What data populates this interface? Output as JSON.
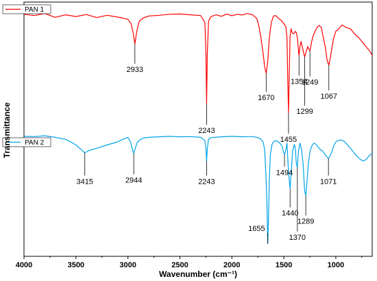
{
  "chart_data": {
    "type": "line",
    "xlabel": "Wavenumber (cm⁻¹)",
    "ylabel": "Transmittance",
    "xlim": [
      4000,
      650
    ],
    "xticks": [
      "4000",
      "3500",
      "3000",
      "2500",
      "2000",
      "1500",
      "1000"
    ],
    "xtick_values": [
      4000,
      3500,
      3000,
      2500,
      2000,
      1500,
      1000
    ],
    "ylim": [
      0,
      100
    ],
    "y_ticks_shown": false,
    "grid": false,
    "series": [
      {
        "name": "PAN 1",
        "color": "#ff0000",
        "x": [
          4000,
          3900,
          3800,
          3700,
          3600,
          3500,
          3400,
          3300,
          3200,
          3100,
          3050,
          3000,
          2970,
          2950,
          2933,
          2915,
          2890,
          2850,
          2800,
          2700,
          2600,
          2500,
          2400,
          2300,
          2260,
          2250,
          2243,
          2236,
          2225,
          2200,
          2150,
          2100,
          2050,
          2000,
          1950,
          1900,
          1850,
          1800,
          1760,
          1740,
          1720,
          1700,
          1685,
          1670,
          1655,
          1640,
          1620,
          1600,
          1580,
          1560,
          1540,
          1520,
          1500,
          1480,
          1470,
          1462,
          1455,
          1448,
          1440,
          1430,
          1420,
          1410,
          1400,
          1390,
          1380,
          1370,
          1360,
          1354,
          1345,
          1335,
          1320,
          1310,
          1299,
          1285,
          1270,
          1260,
          1249,
          1235,
          1220,
          1200,
          1180,
          1160,
          1140,
          1120,
          1100,
          1085,
          1075,
          1067,
          1055,
          1040,
          1020,
          1000,
          970,
          940,
          900,
          860,
          820,
          780,
          740,
          700,
          670,
          650
        ],
        "y": [
          95.2,
          94.7,
          95.5,
          94.0,
          95.0,
          94.3,
          95.1,
          93.9,
          94.8,
          94.1,
          93.7,
          93.2,
          91.5,
          88.0,
          83.5,
          88.5,
          92.5,
          93.8,
          94.5,
          94.8,
          95.2,
          95.3,
          95.0,
          94.7,
          92.0,
          80.0,
          60.0,
          80.0,
          92.5,
          94.3,
          95.0,
          94.4,
          95.3,
          94.6,
          95.2,
          94.9,
          95.5,
          95.0,
          93.5,
          90.5,
          86.0,
          80.0,
          74.5,
          72.0,
          76.5,
          86.0,
          92.0,
          94.5,
          94.7,
          94.0,
          93.3,
          92.5,
          91.5,
          90.3,
          86.0,
          68.0,
          56.5,
          72.0,
          86.5,
          89.5,
          88.0,
          87.5,
          87.8,
          88.5,
          88.0,
          86.0,
          81.5,
          79.0,
          82.5,
          84.5,
          82.0,
          80.0,
          78.5,
          80.5,
          82.5,
          81.5,
          80.8,
          84.0,
          86.5,
          88.5,
          90.0,
          90.8,
          90.0,
          86.0,
          82.0,
          77.5,
          76.0,
          75.2,
          77.5,
          81.5,
          86.0,
          88.5,
          89.5,
          91.0,
          90.0,
          89.5,
          87.5,
          86.0,
          84.0,
          82.0,
          80.5,
          79.0
        ]
      },
      {
        "name": "PAN 2",
        "color": "#00a2e8",
        "x": [
          4000,
          3900,
          3800,
          3700,
          3600,
          3550,
          3500,
          3450,
          3415,
          3380,
          3300,
          3200,
          3100,
          3050,
          3000,
          2975,
          2960,
          2944,
          2930,
          2910,
          2880,
          2850,
          2800,
          2700,
          2600,
          2500,
          2400,
          2300,
          2260,
          2250,
          2243,
          2236,
          2225,
          2200,
          2100,
          2000,
          1900,
          1850,
          1800,
          1760,
          1740,
          1720,
          1700,
          1685,
          1670,
          1662,
          1655,
          1648,
          1640,
          1630,
          1615,
          1600,
          1580,
          1560,
          1540,
          1520,
          1505,
          1494,
          1485,
          1470,
          1455,
          1440,
          1428,
          1415,
          1400,
          1390,
          1380,
          1370,
          1360,
          1345,
          1330,
          1315,
          1300,
          1289,
          1280,
          1265,
          1250,
          1230,
          1210,
          1190,
          1170,
          1150,
          1130,
          1110,
          1095,
          1080,
          1071,
          1060,
          1040,
          1020,
          1000,
          980,
          950,
          920,
          890,
          860,
          830,
          800,
          770,
          740,
          710,
          680,
          650
        ],
        "y": [
          47.2,
          47.1,
          47.4,
          46.8,
          46.0,
          45.0,
          43.8,
          42.0,
          40.7,
          41.5,
          42.5,
          43.8,
          45.0,
          46.0,
          46.8,
          45.0,
          42.5,
          40.5,
          42.5,
          44.8,
          46.0,
          46.5,
          46.8,
          47.0,
          47.2,
          47.0,
          47.1,
          46.8,
          45.5,
          42.5,
          37.5,
          42.5,
          46.0,
          46.7,
          47.0,
          47.2,
          47.0,
          47.1,
          47.1,
          46.8,
          46.5,
          46.0,
          45.0,
          42.0,
          30.0,
          20.0,
          5.0,
          15.0,
          30.0,
          40.0,
          43.8,
          45.0,
          45.5,
          45.2,
          44.6,
          43.5,
          41.5,
          40.0,
          41.0,
          44.5,
          33.0,
          26.5,
          34.0,
          41.5,
          44.0,
          42.5,
          36.5,
          35.0,
          41.0,
          44.5,
          42.0,
          36.5,
          26.0,
          23.8,
          28.0,
          36.0,
          41.0,
          43.5,
          44.5,
          44.0,
          43.0,
          42.0,
          41.5,
          40.5,
          39.5,
          38.8,
          38.5,
          39.2,
          41.0,
          43.5,
          45.0,
          45.5,
          45.8,
          45.2,
          44.0,
          42.5,
          41.0,
          39.5,
          38.3,
          37.5,
          38.0,
          39.5,
          40.5
        ]
      }
    ],
    "annotations": [
      {
        "label": "2933",
        "series": 0,
        "x": 2933,
        "text_y": 72.5
      },
      {
        "label": "2243",
        "series": 0,
        "x": 2243,
        "text_y": 48.5
      },
      {
        "label": "1670",
        "series": 0,
        "x": 1670,
        "text_y": 61.5
      },
      {
        "label": "1455",
        "series": 0,
        "x": 1455,
        "text_y": 45.0
      },
      {
        "label": "1354",
        "series": 0,
        "x": 1354,
        "text_y": 67.8,
        "small": true
      },
      {
        "label": "1299",
        "series": 0,
        "x": 1299,
        "text_y": 56.0
      },
      {
        "label": "1249",
        "series": 0,
        "x": 1249,
        "text_y": 67.5
      },
      {
        "label": "1067",
        "series": 0,
        "x": 1067,
        "text_y": 62.0
      },
      {
        "label": "3415",
        "series": 1,
        "x": 3415,
        "text_y": 28.5
      },
      {
        "label": "2944",
        "series": 1,
        "x": 2944,
        "text_y": 29.0
      },
      {
        "label": "2243",
        "series": 1,
        "x": 2243,
        "text_y": 28.5
      },
      {
        "label": "1494",
        "series": 1,
        "x": 1494,
        "text_y": 32.0,
        "small": true
      },
      {
        "label": "1440",
        "series": 1,
        "x": 1440,
        "text_y": 16.0
      },
      {
        "label": "1370",
        "series": 1,
        "x": 1370,
        "text_y": 6.5
      },
      {
        "label": "1289",
        "series": 1,
        "x": 1289,
        "text_y": 12.8
      },
      {
        "label": "1655",
        "series": 1,
        "x": 1655,
        "text_y": 10.0,
        "left": true
      },
      {
        "label": "1071",
        "series": 1,
        "x": 1071,
        "text_y": 28.5
      }
    ],
    "legend": [
      {
        "name": "PAN 1",
        "color": "#ff0000",
        "position": "top-left"
      },
      {
        "name": "PAN 2",
        "color": "#00a2e8",
        "position": "middle-left"
      }
    ]
  }
}
